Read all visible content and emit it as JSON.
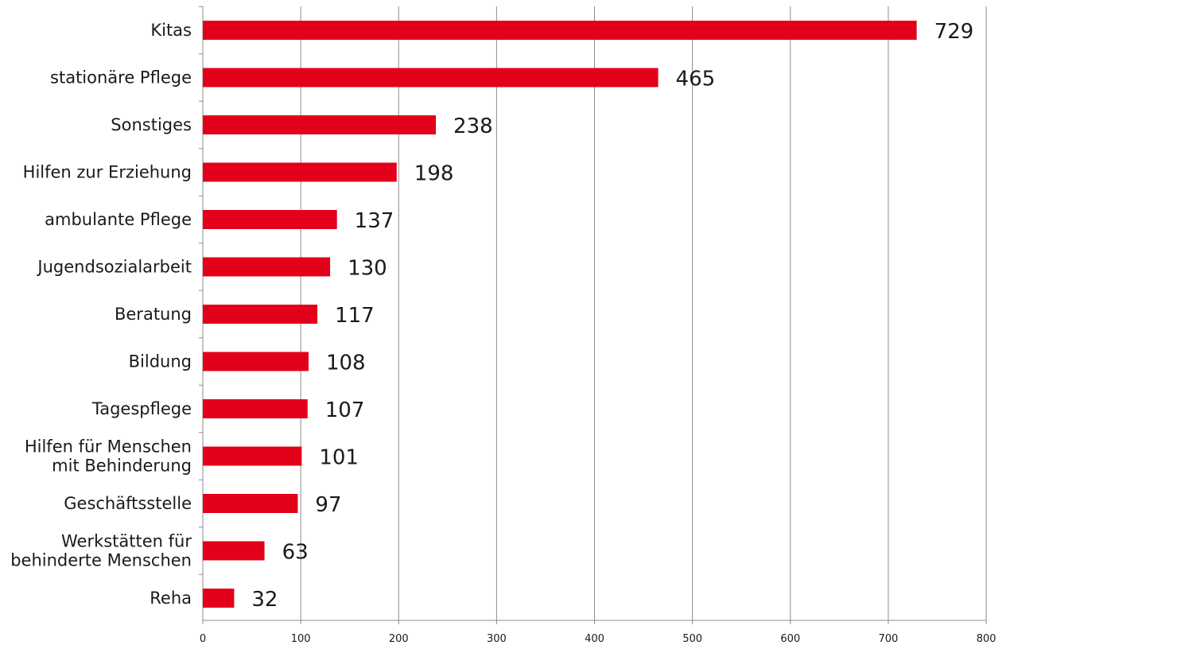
{
  "chart_data": {
    "type": "bar",
    "orientation": "horizontal",
    "categories": [
      "Kitas",
      "stationäre Pflege",
      "Sonstiges",
      "Hilfen zur Erziehung",
      "ambulante Pflege",
      "Jugendsozialarbeit",
      "Beratung",
      "Bildung",
      "Tagespflege",
      "Hilfen für Menschen mit Behinderung",
      "Geschäftsstelle",
      "Werkstätten für behinderte Menschen",
      "Reha"
    ],
    "category_label_lines": [
      [
        "Kitas"
      ],
      [
        "stationäre Pflege"
      ],
      [
        "Sonstiges"
      ],
      [
        "Hilfen zur Erziehung"
      ],
      [
        "ambulante Pflege"
      ],
      [
        "Jugendsozialarbeit"
      ],
      [
        "Beratung"
      ],
      [
        "Bildung"
      ],
      [
        "Tagespflege"
      ],
      [
        "Hilfen für Menschen",
        "mit Behinderung"
      ],
      [
        "Geschäftsstelle"
      ],
      [
        "Werkstätten für",
        "behinderte Menschen"
      ],
      [
        "Reha"
      ]
    ],
    "values": [
      729,
      465,
      238,
      198,
      137,
      130,
      117,
      108,
      107,
      101,
      97,
      63,
      32
    ],
    "data_labels": [
      "729",
      "465",
      "238",
      "198",
      "137",
      "130",
      "117",
      "108",
      "107",
      "101",
      "97",
      "63",
      "32"
    ],
    "xlim": [
      0,
      800
    ],
    "x_ticks": [
      0,
      100,
      200,
      300,
      400,
      500,
      600,
      700,
      800
    ],
    "x_tick_labels": [
      "0",
      "100",
      "200",
      "300",
      "400",
      "500",
      "600",
      "700",
      "800"
    ],
    "grid": "vertical",
    "bar_color": "#e2001a",
    "grid_color": "#8c8c8c",
    "legend": "none",
    "title": "",
    "xlabel": "",
    "ylabel": ""
  }
}
